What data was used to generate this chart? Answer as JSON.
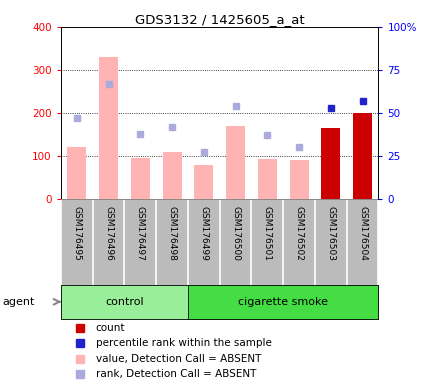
{
  "title": "GDS3132 / 1425605_a_at",
  "samples": [
    "GSM176495",
    "GSM176496",
    "GSM176497",
    "GSM176498",
    "GSM176499",
    "GSM176500",
    "GSM176501",
    "GSM176502",
    "GSM176503",
    "GSM176504"
  ],
  "bar_values": [
    120,
    330,
    95,
    110,
    80,
    170,
    92,
    90,
    165,
    200
  ],
  "bar_colors": [
    "#ffb3b3",
    "#ffb3b3",
    "#ffb3b3",
    "#ffb3b3",
    "#ffb3b3",
    "#ffb3b3",
    "#ffb3b3",
    "#ffb3b3",
    "#cc0000",
    "#cc0000"
  ],
  "rank_dots": [
    47,
    67,
    38,
    42,
    27,
    54,
    37,
    30,
    53,
    57
  ],
  "rank_dot_colors": [
    "#aaaadd",
    "#aaaadd",
    "#aaaadd",
    "#aaaadd",
    "#aaaadd",
    "#aaaadd",
    "#aaaadd",
    "#aaaadd",
    "#2222cc",
    "#2222cc"
  ],
  "left_ylim": [
    0,
    400
  ],
  "left_yticks": [
    0,
    100,
    200,
    300,
    400
  ],
  "right_ylim": [
    0,
    100
  ],
  "right_yticks": [
    0,
    25,
    50,
    75,
    100
  ],
  "right_yticklabels": [
    "0",
    "25",
    "50",
    "75",
    "100%"
  ],
  "agent_label": "agent",
  "ctrl_color": "#99ee99",
  "smoke_color": "#44dd44",
  "tick_area_color": "#bbbbbb",
  "background_color": "#ffffff",
  "legend_items": [
    {
      "label": "count",
      "color": "#cc0000"
    },
    {
      "label": "percentile rank within the sample",
      "color": "#2222cc"
    },
    {
      "label": "value, Detection Call = ABSENT",
      "color": "#ffb3b3"
    },
    {
      "label": "rank, Detection Call = ABSENT",
      "color": "#aaaadd"
    }
  ]
}
